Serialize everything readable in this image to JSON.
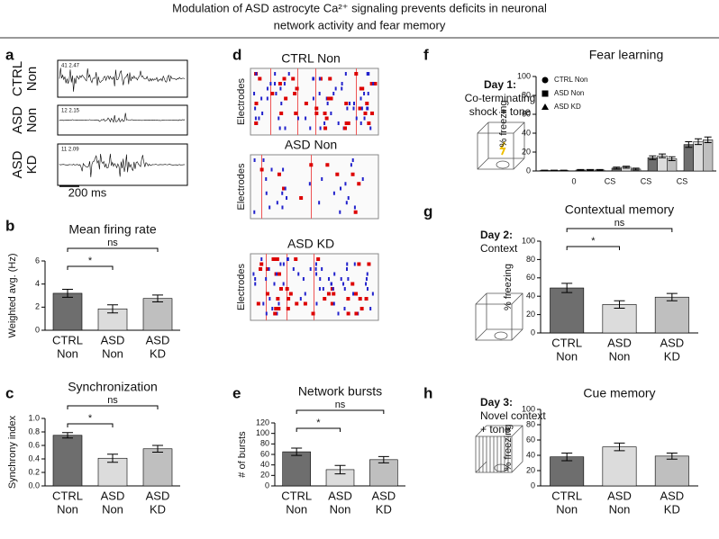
{
  "title": [
    "Modulation of ASD astrocyte Ca²⁺ signaling prevents deficits in neuronal",
    "network activity and fear memory"
  ],
  "panels": {
    "letters": [
      "a",
      "b",
      "c",
      "d",
      "e",
      "f",
      "g",
      "h"
    ],
    "a": {
      "rows": [
        [
          "CTRL",
          "Non"
        ],
        [
          "ASD",
          "Non"
        ],
        [
          "ASD",
          "KD"
        ]
      ],
      "trace_labels": [
        "41  2.47",
        "12  2.15",
        "11  2.09"
      ],
      "scale_bar": "200 ms"
    },
    "d": {
      "titles": [
        "CTRL Non",
        "ASD Non",
        "ASD KD"
      ],
      "y_label": "Electrodes"
    },
    "days": [
      {
        "day": "Day 1:",
        "lines": [
          "Co-terminating",
          "shock + tone"
        ]
      },
      {
        "day": "Day 2:",
        "lines": [
          "Context"
        ]
      },
      {
        "day": "Day 3:",
        "lines": [
          "Novel context",
          "+ tone"
        ]
      }
    ]
  },
  "chart_data": [
    {
      "type": "bar",
      "title": "Mean firing rate",
      "y_label": "Weighted avg. (Hz)",
      "categories": [
        [
          "CTRL",
          "Non"
        ],
        [
          "ASD",
          "Non"
        ],
        [
          "ASD",
          "KD"
        ]
      ],
      "values": [
        3.2,
        1.85,
        2.75
      ],
      "errors": [
        0.35,
        0.35,
        0.3
      ],
      "colors": [
        "#6e6e6e",
        "#dcdcdc",
        "#bfbfbf"
      ],
      "ylim": [
        0,
        6
      ],
      "yticks": [
        0,
        2,
        4,
        6
      ],
      "significance": [
        {
          "pair": [
            0,
            1
          ],
          "label": "*"
        },
        {
          "pair": [
            0,
            2
          ],
          "label": "ns"
        }
      ]
    },
    {
      "type": "bar",
      "title": "Synchronization",
      "y_label": "Synchrony index",
      "categories": [
        [
          "CTRL",
          "Non"
        ],
        [
          "ASD",
          "Non"
        ],
        [
          "ASD",
          "KD"
        ]
      ],
      "values": [
        0.75,
        0.41,
        0.55
      ],
      "errors": [
        0.04,
        0.06,
        0.05
      ],
      "colors": [
        "#6e6e6e",
        "#dcdcdc",
        "#bfbfbf"
      ],
      "ylim": [
        0,
        1
      ],
      "yticks": [
        {
          "value": 0,
          "label": "0.0"
        },
        0.2,
        0.4,
        0.6,
        0.8,
        {
          "value": 1,
          "label": "1.0"
        }
      ],
      "significance": [
        {
          "pair": [
            0,
            1
          ],
          "label": "*"
        },
        {
          "pair": [
            0,
            2
          ],
          "label": "ns"
        }
      ]
    },
    {
      "type": "bar",
      "title": "Network bursts",
      "y_label": "# of bursts",
      "categories": [
        [
          "CTRL",
          "Non"
        ],
        [
          "ASD",
          "Non"
        ],
        [
          "ASD",
          "KD"
        ]
      ],
      "values": [
        65,
        31,
        50
      ],
      "errors": [
        7,
        8,
        6
      ],
      "colors": [
        "#6e6e6e",
        "#dcdcdc",
        "#bfbfbf"
      ],
      "ylim": [
        0,
        120
      ],
      "yticks": [
        0,
        20,
        40,
        60,
        80,
        100,
        120
      ],
      "significance": [
        {
          "pair": [
            0,
            1
          ],
          "label": "*"
        },
        {
          "pair": [
            0,
            2
          ],
          "label": "ns"
        }
      ]
    },
    {
      "type": "grouped_bar",
      "title": "Fear learning",
      "y_label": "% freezing",
      "categories": [
        null,
        "0",
        "CS",
        "CS",
        "CS"
      ],
      "series": [
        {
          "name": "CTRL Non",
          "marker": "circle",
          "color": "#6e6e6e",
          "values": [
            0.5,
            1,
            3,
            14,
            28
          ],
          "errors": [
            0.3,
            0.5,
            1,
            2,
            3
          ]
        },
        {
          "name": "ASD Non",
          "marker": "square",
          "color": "#dcdcdc",
          "values": [
            0.5,
            1,
            4,
            16,
            31
          ],
          "errors": [
            0.3,
            0.5,
            1,
            2,
            3
          ]
        },
        {
          "name": "ASD KD",
          "marker": "triangle",
          "color": "#bfbfbf",
          "values": [
            0.5,
            1,
            2,
            13,
            33
          ],
          "errors": [
            0.3,
            0.5,
            1,
            2,
            3
          ]
        }
      ],
      "ylim": [
        0,
        100
      ],
      "yticks": [
        0,
        20,
        40,
        60,
        80,
        100
      ]
    },
    {
      "type": "bar",
      "title": "Contextual memory",
      "y_label": "% freezing",
      "categories": [
        [
          "CTRL",
          "Non"
        ],
        [
          "ASD",
          "Non"
        ],
        [
          "ASD",
          "KD"
        ]
      ],
      "values": [
        49,
        31,
        39
      ],
      "errors": [
        5,
        4,
        4
      ],
      "colors": [
        "#6e6e6e",
        "#dcdcdc",
        "#bfbfbf"
      ],
      "ylim": [
        0,
        100
      ],
      "yticks": [
        0,
        20,
        40,
        60,
        80,
        100
      ],
      "significance": [
        {
          "pair": [
            0,
            1
          ],
          "label": "*"
        },
        {
          "pair": [
            0,
            2
          ],
          "label": "ns"
        }
      ]
    },
    {
      "type": "bar",
      "title": "Cue memory",
      "y_label": "% freezing",
      "categories": [
        [
          "CTRL",
          "Non"
        ],
        [
          "ASD",
          "Non"
        ],
        [
          "ASD",
          "KD"
        ]
      ],
      "values": [
        38,
        51,
        39
      ],
      "errors": [
        5,
        5,
        4
      ],
      "colors": [
        "#6e6e6e",
        "#dcdcdc",
        "#bfbfbf"
      ],
      "ylim": [
        0,
        100
      ],
      "yticks": [
        0,
        20,
        40,
        60,
        80,
        100
      ]
    }
  ]
}
